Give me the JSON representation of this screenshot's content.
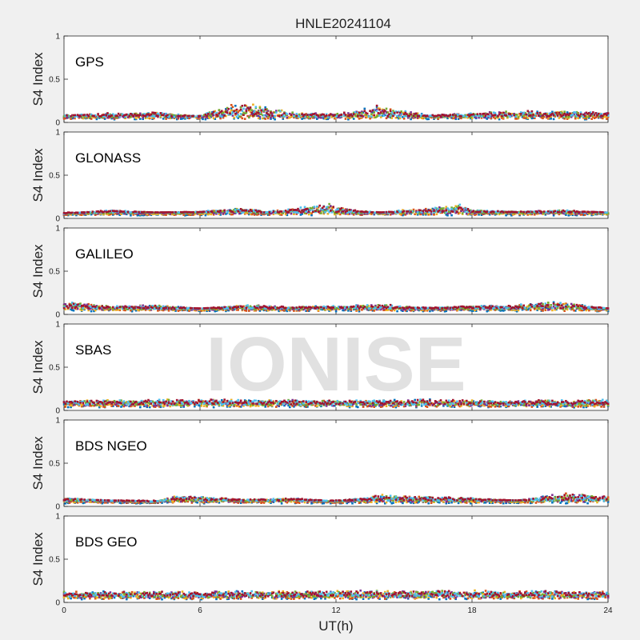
{
  "chart_data": {
    "type": "scatter",
    "title": "HNLE20241104",
    "xlabel": "UT(h)",
    "ylabel": "S4 Index",
    "xlim": [
      0,
      24
    ],
    "ylim": [
      0,
      1
    ],
    "xticks": [
      "0",
      "6",
      "12",
      "18",
      "24"
    ],
    "yticks": [
      "0",
      "0.5",
      "1"
    ],
    "grid": false,
    "watermark": "IONISE",
    "series_colors": [
      "#0072BD",
      "#D95319",
      "#EDB120",
      "#7E2F8E",
      "#77AC30",
      "#4DBEEE",
      "#A2142F"
    ],
    "panels": [
      {
        "name": "GPS",
        "x": [
          0,
          2,
          4,
          6,
          7.8,
          10,
          12,
          13.8,
          16,
          18,
          20,
          22,
          24
        ],
        "y": [
          0.09,
          0.11,
          0.12,
          0.08,
          0.25,
          0.12,
          0.1,
          0.2,
          0.09,
          0.11,
          0.14,
          0.13,
          0.12
        ]
      },
      {
        "name": "GLONASS",
        "x": [
          0,
          2,
          4,
          6,
          7.6,
          9,
          11.6,
          12,
          13,
          14,
          15,
          16,
          17.6,
          18,
          20,
          22,
          24
        ],
        "y": [
          0.05,
          0.1,
          0.07,
          0.08,
          0.13,
          0.08,
          0.18,
          0.15,
          0.09,
          0.07,
          0.1,
          0.12,
          0.17,
          0.1,
          0.08,
          0.1,
          0.07
        ]
      },
      {
        "name": "GALILEO",
        "x": [
          0,
          2,
          4,
          6,
          8,
          10,
          12,
          14,
          16,
          18,
          20,
          21.4,
          24
        ],
        "y": [
          0.16,
          0.1,
          0.11,
          0.07,
          0.11,
          0.09,
          0.1,
          0.12,
          0.08,
          0.1,
          0.11,
          0.17,
          0.07
        ]
      },
      {
        "name": "SBAS",
        "x": [
          0,
          4,
          8,
          12,
          16,
          20,
          24
        ],
        "y": [
          0.12,
          0.13,
          0.13,
          0.12,
          0.13,
          0.12,
          0.13
        ]
      },
      {
        "name": "BDS NGEO",
        "x": [
          0,
          2,
          4,
          5,
          8,
          10,
          12,
          14,
          15,
          17,
          20,
          22,
          24
        ],
        "y": [
          0.1,
          0.07,
          0.05,
          0.13,
          0.08,
          0.1,
          0.06,
          0.14,
          0.12,
          0.11,
          0.07,
          0.16,
          0.12
        ]
      },
      {
        "name": "BDS GEO",
        "x": [
          0,
          6,
          12,
          18,
          24
        ],
        "y": [
          0.13,
          0.13,
          0.14,
          0.14,
          0.13
        ]
      }
    ]
  }
}
